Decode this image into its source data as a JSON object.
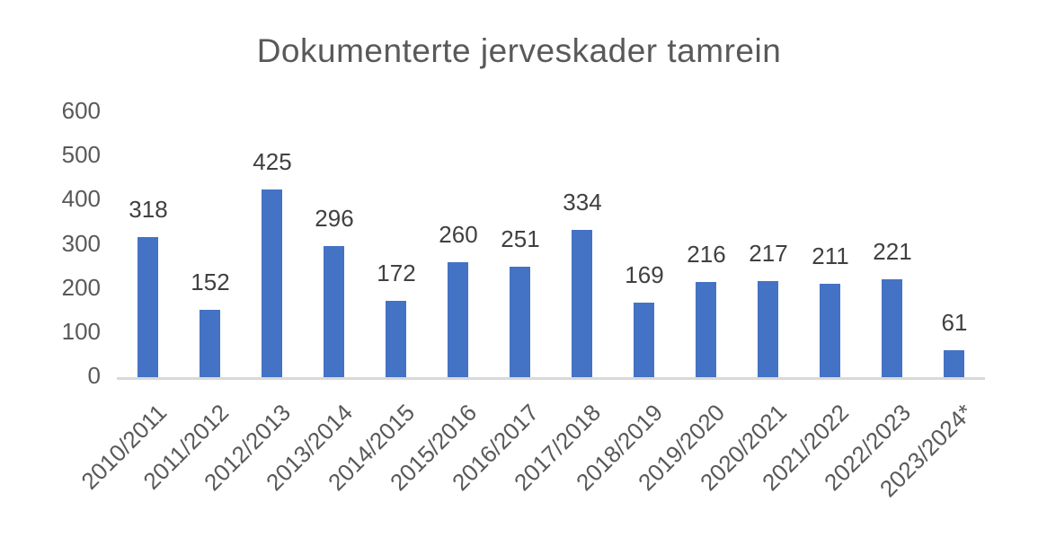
{
  "chart_data": {
    "type": "bar",
    "title": "Dokumenterte jerveskader tamrein",
    "categories": [
      "2010/2011",
      "2011/2012",
      "2012/2013",
      "2013/2014",
      "2014/2015",
      "2015/2016",
      "2016/2017",
      "2017/2018",
      "2018/2019",
      "2019/2020",
      "2020/2021",
      "2021/2022",
      "2022/2023",
      "2023/2024*"
    ],
    "values": [
      318,
      152,
      425,
      296,
      172,
      260,
      251,
      334,
      169,
      216,
      217,
      211,
      221,
      61
    ],
    "xlabel": "",
    "ylabel": "",
    "ylim": [
      0,
      600
    ],
    "yticks": [
      0,
      100,
      200,
      300,
      400,
      500,
      600
    ],
    "grid": false,
    "legend": false,
    "data_labels": "outside-end",
    "x_tick_rotation_deg": 45,
    "colors": {
      "bar": "#4472C4",
      "title_text": "#595959",
      "axis_text": "#595959",
      "data_label_text": "#404040",
      "axis_line": "#D9D9D9",
      "background": "#FFFFFF"
    }
  }
}
